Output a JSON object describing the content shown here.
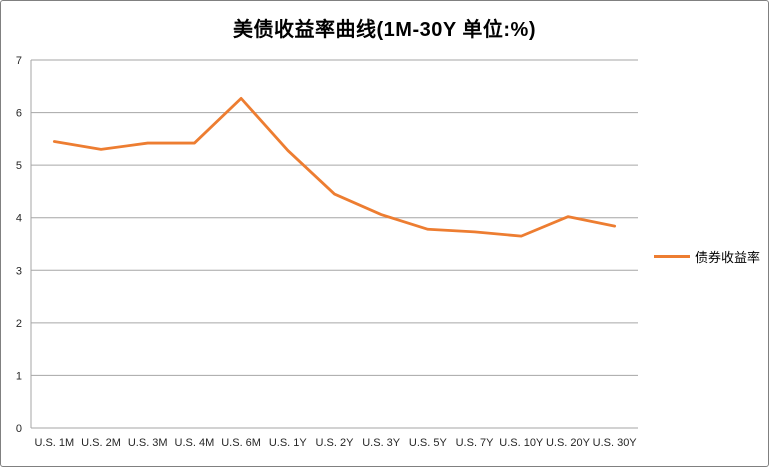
{
  "title": "美债收益率曲线(1M-30Y 单位:%)",
  "legend": {
    "label": "债券收益率"
  },
  "colors": {
    "series_orange": "#ED7D31",
    "gridline": "#A6A6A6",
    "tick_text": "#262626",
    "chart_border": "#808080",
    "background": "#FFFFFF"
  },
  "chart_data": {
    "type": "line",
    "title": "美债收益率曲线(1M-30Y 单位:%)",
    "categories": [
      "U.S. 1M",
      "U.S. 2M",
      "U.S. 3M",
      "U.S. 4M",
      "U.S. 6M",
      "U.S. 1Y",
      "U.S. 2Y",
      "U.S. 3Y",
      "U.S. 5Y",
      "U.S. 7Y",
      "U.S. 10Y",
      "U.S. 20Y",
      "U.S. 30Y"
    ],
    "series": [
      {
        "name": "债券收益率",
        "color": "#ED7D31",
        "values": [
          5.45,
          5.3,
          5.42,
          5.42,
          6.27,
          5.28,
          4.45,
          4.06,
          3.78,
          3.73,
          3.65,
          4.02,
          3.84
        ]
      }
    ],
    "xlabel": "",
    "ylabel": "",
    "ylim": [
      0,
      7
    ],
    "yticks": [
      0,
      1,
      2,
      3,
      4,
      5,
      6,
      7
    ],
    "grid": true,
    "legend_position": "right"
  }
}
